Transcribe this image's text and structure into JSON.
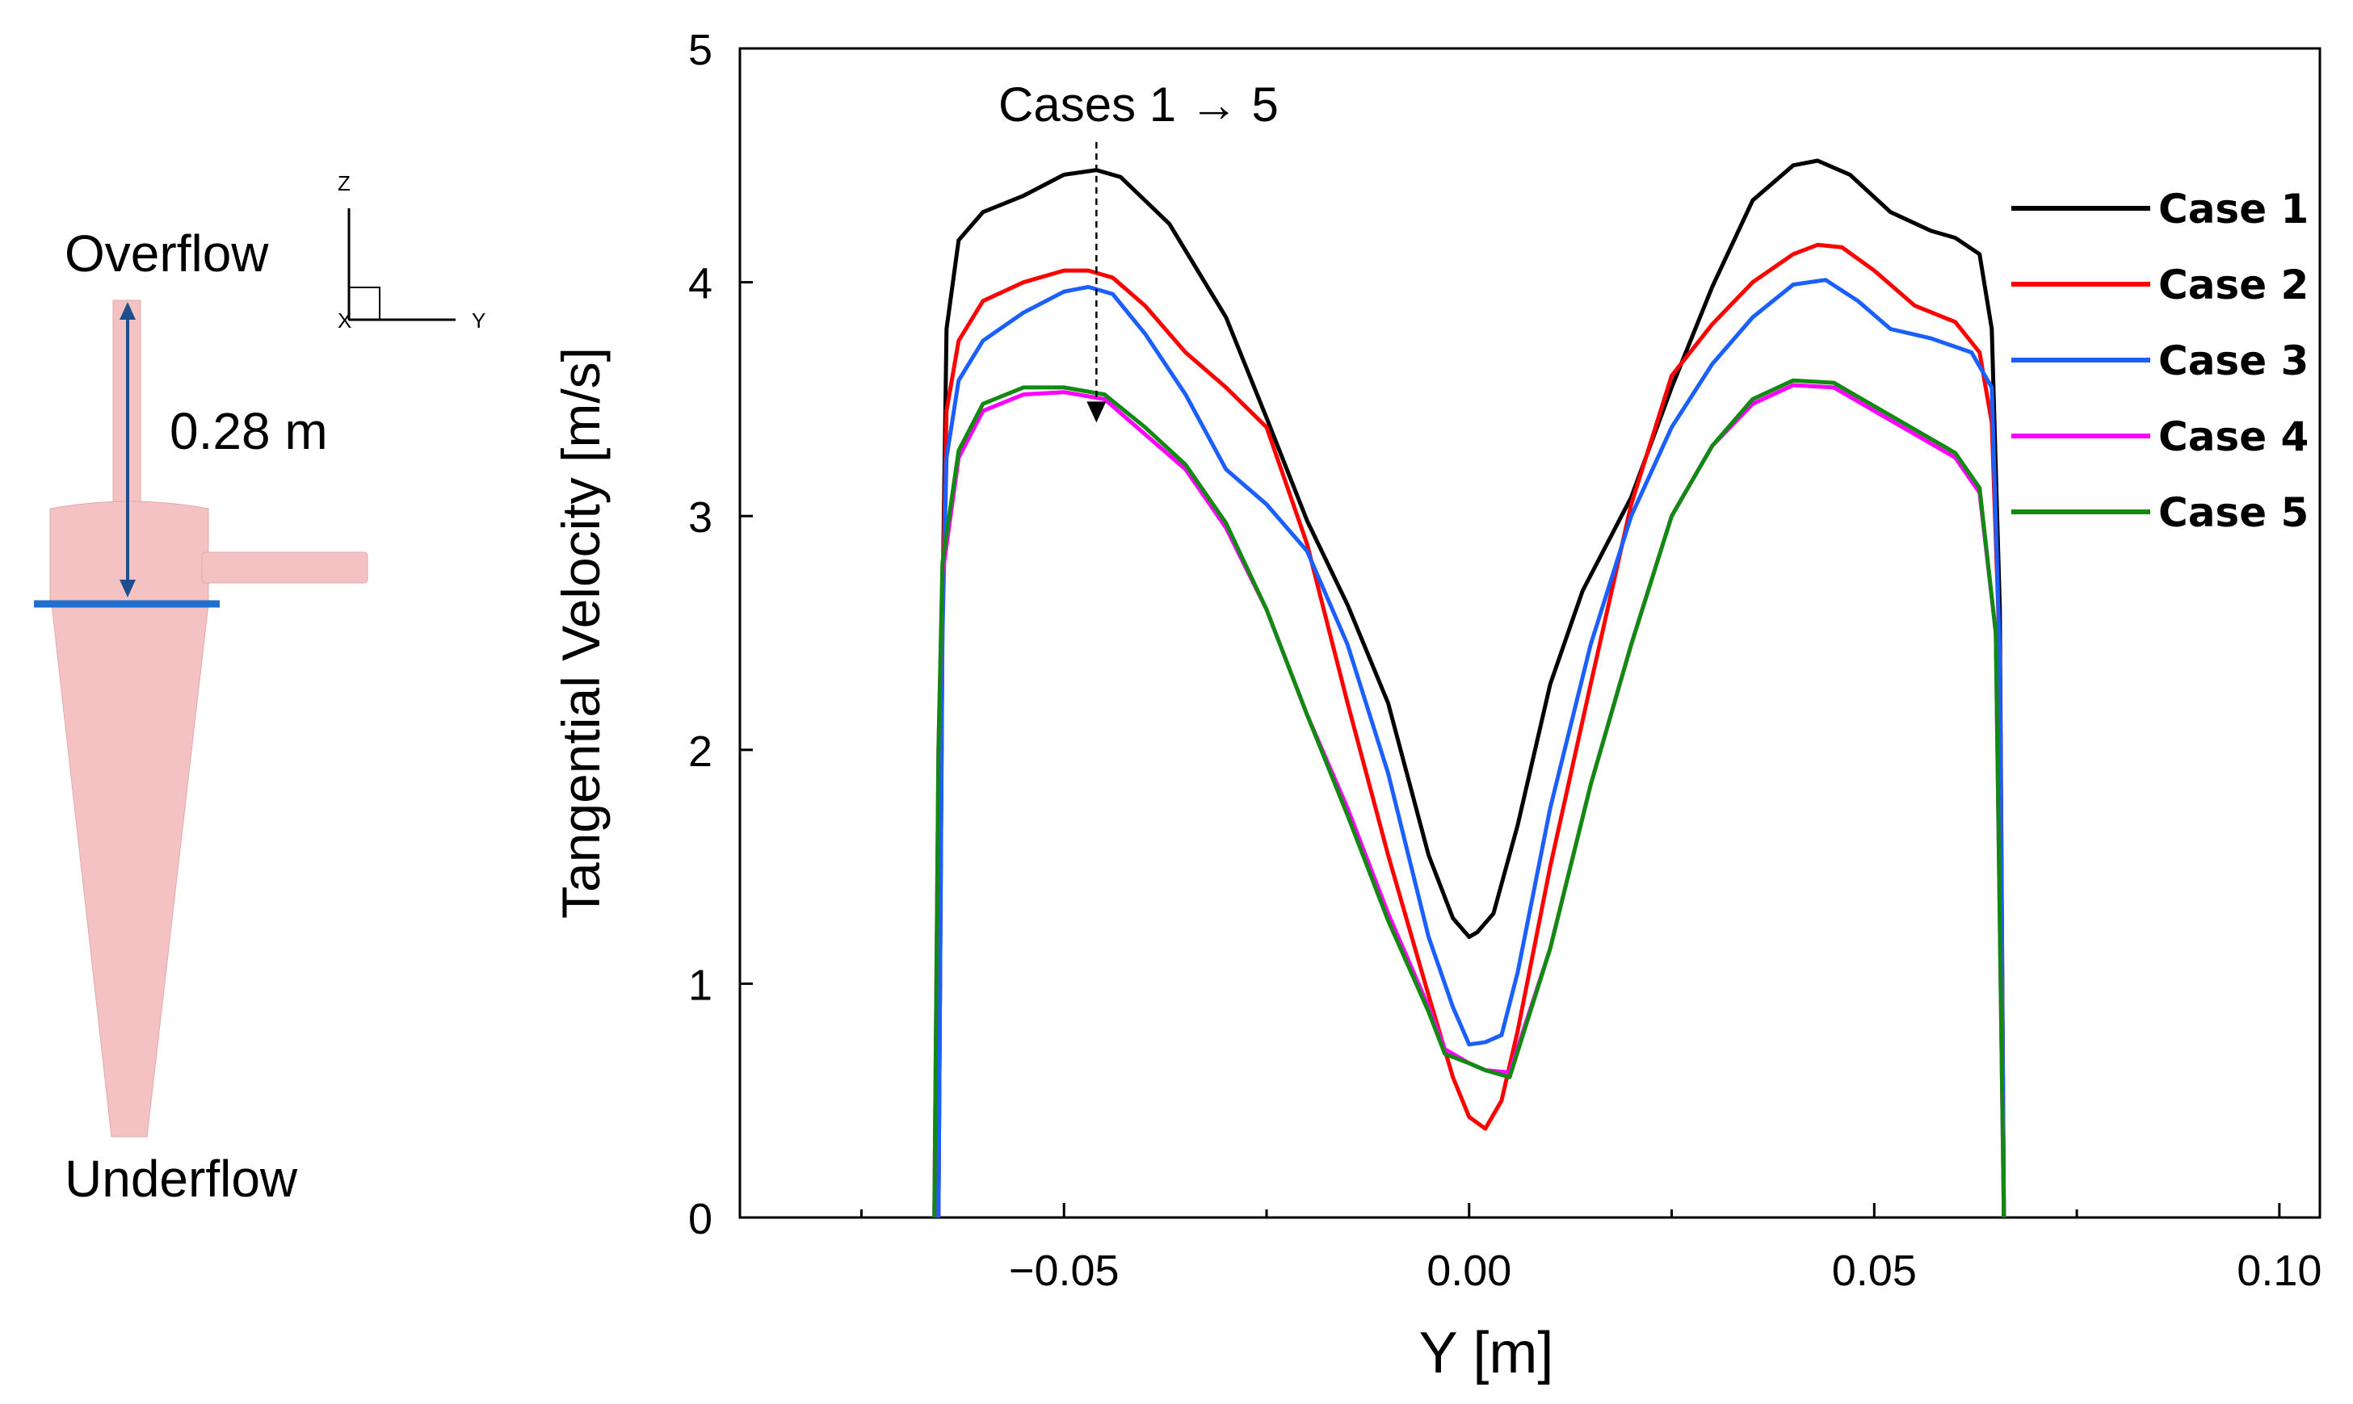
{
  "schematic": {
    "overflow_label": "Overflow",
    "underflow_label": "Underflow",
    "dimension_label": "0.28 m",
    "axis_z": "Z",
    "axis_x": "X",
    "axis_y": "Y",
    "body_color": "#f4c2c2",
    "arrow_color": "#1f4e8c",
    "plane_color": "#1e6fd0"
  },
  "chart_data": {
    "type": "line",
    "title": "",
    "xlabel": "Y [m]",
    "ylabel": "Tangential Velocity [m/s]",
    "xlim": [
      -0.09,
      0.105
    ],
    "ylim": [
      0,
      5
    ],
    "xticks": [
      -0.05,
      0.0,
      0.05,
      0.1
    ],
    "xtick_labels": [
      "−0.05",
      "0.00",
      "0.05",
      "0.10"
    ],
    "yticks": [
      0,
      1,
      2,
      3,
      4,
      5
    ],
    "ytick_labels": [
      "0",
      "1",
      "2",
      "3",
      "4",
      "5"
    ],
    "x_minor_step": 0.025,
    "legend_position": "top-right",
    "annotation": {
      "text": "Cases 1 → 5",
      "arrow_x": -0.046,
      "arrow_from_y": 4.6,
      "arrow_to_y": 3.4
    },
    "series": [
      {
        "name": "Case 1",
        "color": "#000000",
        "x": [
          -0.0655,
          -0.065,
          -0.0645,
          -0.063,
          -0.06,
          -0.055,
          -0.05,
          -0.046,
          -0.043,
          -0.037,
          -0.03,
          -0.025,
          -0.02,
          -0.015,
          -0.01,
          -0.005,
          -0.002,
          0.0,
          0.001,
          0.003,
          0.006,
          0.01,
          0.014,
          0.02,
          0.025,
          0.03,
          0.035,
          0.04,
          0.043,
          0.047,
          0.052,
          0.057,
          0.06,
          0.063,
          0.0645,
          0.0655,
          0.066
        ],
        "y": [
          0.0,
          2.6,
          3.8,
          4.18,
          4.3,
          4.37,
          4.46,
          4.48,
          4.45,
          4.25,
          3.85,
          3.42,
          2.98,
          2.62,
          2.2,
          1.55,
          1.28,
          1.2,
          1.22,
          1.3,
          1.68,
          2.28,
          2.68,
          3.08,
          3.55,
          3.98,
          4.35,
          4.5,
          4.52,
          4.46,
          4.3,
          4.22,
          4.19,
          4.12,
          3.8,
          2.6,
          0.0
        ]
      },
      {
        "name": "Case 2",
        "color": "#ff0000",
        "x": [
          -0.0655,
          -0.065,
          -0.0645,
          -0.063,
          -0.06,
          -0.055,
          -0.05,
          -0.047,
          -0.044,
          -0.04,
          -0.035,
          -0.03,
          -0.025,
          -0.02,
          -0.015,
          -0.01,
          -0.005,
          -0.002,
          0.0,
          0.002,
          0.004,
          0.006,
          0.01,
          0.015,
          0.02,
          0.025,
          0.03,
          0.035,
          0.04,
          0.043,
          0.046,
          0.05,
          0.055,
          0.06,
          0.063,
          0.0645,
          0.0655,
          0.066
        ],
        "y": [
          0.0,
          2.6,
          3.45,
          3.75,
          3.92,
          4.0,
          4.05,
          4.05,
          4.02,
          3.9,
          3.7,
          3.55,
          3.38,
          2.88,
          2.2,
          1.55,
          0.95,
          0.6,
          0.43,
          0.38,
          0.5,
          0.8,
          1.5,
          2.28,
          3.05,
          3.6,
          3.82,
          4.0,
          4.12,
          4.16,
          4.15,
          4.05,
          3.9,
          3.83,
          3.7,
          3.4,
          2.4,
          0.0
        ]
      },
      {
        "name": "Case 3",
        "color": "#1b5fff",
        "x": [
          -0.0655,
          -0.065,
          -0.0645,
          -0.063,
          -0.06,
          -0.055,
          -0.05,
          -0.047,
          -0.044,
          -0.04,
          -0.035,
          -0.03,
          -0.025,
          -0.02,
          -0.015,
          -0.01,
          -0.005,
          -0.002,
          0.0,
          0.002,
          0.004,
          0.006,
          0.01,
          0.015,
          0.02,
          0.025,
          0.03,
          0.035,
          0.04,
          0.044,
          0.048,
          0.052,
          0.057,
          0.062,
          0.0645,
          0.0655,
          0.066
        ],
        "y": [
          0.0,
          2.5,
          3.25,
          3.58,
          3.75,
          3.87,
          3.96,
          3.98,
          3.95,
          3.78,
          3.52,
          3.2,
          3.05,
          2.85,
          2.45,
          1.9,
          1.2,
          0.9,
          0.74,
          0.75,
          0.78,
          1.05,
          1.75,
          2.45,
          3.0,
          3.38,
          3.65,
          3.85,
          3.99,
          4.01,
          3.92,
          3.8,
          3.76,
          3.7,
          3.55,
          2.4,
          0.0
        ]
      },
      {
        "name": "Case 4",
        "color": "#ff00ff",
        "x": [
          -0.066,
          -0.0655,
          -0.065,
          -0.063,
          -0.06,
          -0.055,
          -0.05,
          -0.045,
          -0.04,
          -0.035,
          -0.03,
          -0.025,
          -0.02,
          -0.015,
          -0.01,
          -0.005,
          -0.003,
          0.0,
          0.002,
          0.005,
          0.01,
          0.015,
          0.02,
          0.025,
          0.03,
          0.035,
          0.04,
          0.045,
          0.05,
          0.055,
          0.06,
          0.063,
          0.065,
          0.066
        ],
        "y": [
          0.0,
          2.0,
          2.75,
          3.25,
          3.45,
          3.52,
          3.53,
          3.5,
          3.35,
          3.2,
          2.95,
          2.6,
          2.15,
          1.75,
          1.3,
          0.9,
          0.72,
          0.66,
          0.63,
          0.62,
          1.15,
          1.85,
          2.45,
          3.0,
          3.3,
          3.48,
          3.56,
          3.55,
          3.45,
          3.35,
          3.25,
          3.1,
          2.5,
          0.0
        ]
      },
      {
        "name": "Case 5",
        "color": "#128a12",
        "x": [
          -0.066,
          -0.0655,
          -0.065,
          -0.063,
          -0.06,
          -0.055,
          -0.05,
          -0.045,
          -0.04,
          -0.035,
          -0.03,
          -0.025,
          -0.02,
          -0.015,
          -0.01,
          -0.005,
          -0.003,
          0.0,
          0.002,
          0.005,
          0.01,
          0.015,
          0.02,
          0.025,
          0.03,
          0.035,
          0.04,
          0.045,
          0.05,
          0.055,
          0.06,
          0.063,
          0.065,
          0.066
        ],
        "y": [
          0.0,
          2.0,
          2.8,
          3.28,
          3.48,
          3.55,
          3.55,
          3.52,
          3.38,
          3.22,
          2.97,
          2.6,
          2.15,
          1.72,
          1.27,
          0.88,
          0.7,
          0.66,
          0.63,
          0.6,
          1.15,
          1.85,
          2.45,
          3.0,
          3.3,
          3.5,
          3.58,
          3.57,
          3.47,
          3.37,
          3.27,
          3.12,
          2.5,
          0.0
        ]
      }
    ]
  }
}
